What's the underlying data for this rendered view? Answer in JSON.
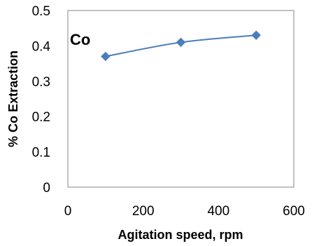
{
  "chart_data": {
    "type": "line",
    "title": "",
    "annotation": "Co",
    "xlabel": "Agitation speed, rpm",
    "ylabel": "% Co Extraction",
    "xlim": [
      0,
      600
    ],
    "ylim": [
      0,
      0.5
    ],
    "x_ticks": [
      "0",
      "200",
      "400",
      "600"
    ],
    "y_ticks": [
      "0",
      "0.1",
      "0.2",
      "0.3",
      "0.4",
      "0.5"
    ],
    "grid": false,
    "legend": "none",
    "marker": "diamond",
    "color": "#4a7ebb",
    "series": [
      {
        "x": [
          100,
          300,
          500
        ],
        "y": [
          0.37,
          0.41,
          0.43
        ]
      }
    ]
  }
}
